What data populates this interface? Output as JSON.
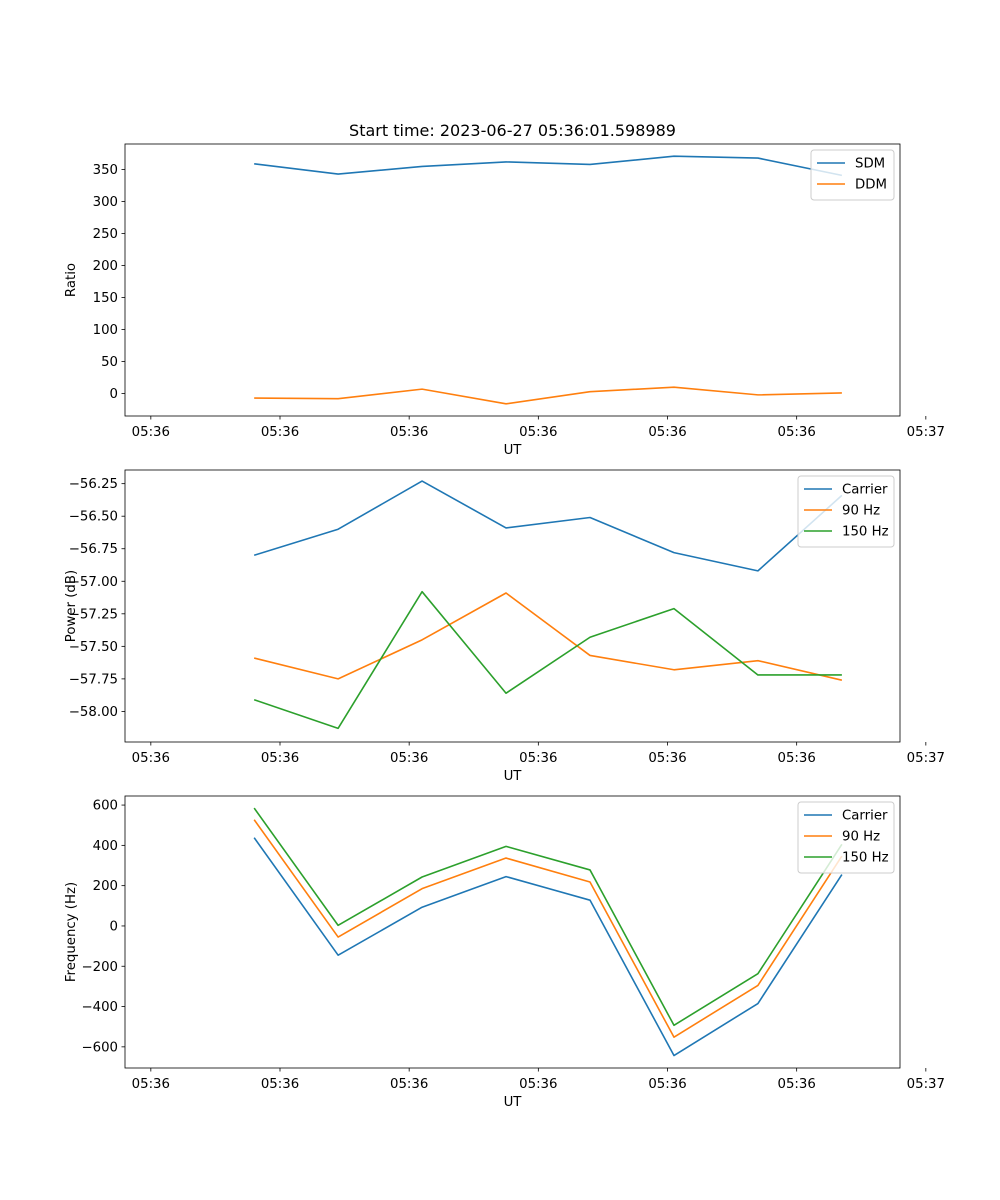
{
  "chart_data": [
    {
      "type": "line",
      "title": "Start time: 2023-06-27 05:36:01.598989",
      "xlabel": "UT",
      "ylabel": "Ratio",
      "x_tick_labels": [
        "05:36",
        "05:36",
        "05:36",
        "05:36",
        "05:36",
        "05:36",
        "05:36"
      ],
      "x_tick_label_last": "05:37",
      "x_seconds": [
        2.3,
        2.95,
        3.6,
        4.25,
        4.9,
        5.55,
        6.2,
        6.85
      ],
      "xlim": [
        1.3,
        7.3
      ],
      "ylim": [
        -35,
        390
      ],
      "y_ticks": [
        0,
        50,
        100,
        150,
        200,
        250,
        300,
        350
      ],
      "legend_position": "upper right",
      "series": [
        {
          "name": "SDM",
          "color": "#1f77b4",
          "values": [
            359,
            343,
            355,
            362,
            358,
            371,
            368,
            341
          ]
        },
        {
          "name": "DDM",
          "color": "#ff7f0e",
          "values": [
            -7,
            -8,
            7,
            -16,
            3,
            10,
            -2,
            1
          ]
        }
      ]
    },
    {
      "type": "line",
      "title": "",
      "xlabel": "UT",
      "ylabel": "Power (dB)",
      "x_tick_labels": [
        "05:36",
        "05:36",
        "05:36",
        "05:36",
        "05:36",
        "05:36",
        "05:36"
      ],
      "x_tick_label_last": "05:37",
      "x_seconds": [
        2.3,
        2.95,
        3.6,
        4.25,
        4.9,
        5.55,
        6.2,
        6.85
      ],
      "xlim": [
        1.3,
        7.3
      ],
      "ylim": [
        -58.235,
        -56.145
      ],
      "y_ticks": [
        -58.0,
        -57.75,
        -57.5,
        -57.25,
        -57.0,
        -56.75,
        -56.5,
        -56.25
      ],
      "y_tick_labels": [
        "−58.00",
        "−57.75",
        "−57.50",
        "−57.25",
        "−57.00",
        "−56.75",
        "−56.50",
        "−56.25"
      ],
      "legend_position": "upper right",
      "series": [
        {
          "name": "Carrier",
          "color": "#1f77b4",
          "values": [
            -56.8,
            -56.6,
            -56.23,
            -56.59,
            -56.51,
            -56.78,
            -56.92,
            -56.34
          ]
        },
        {
          "name": "90 Hz",
          "color": "#ff7f0e",
          "values": [
            -57.59,
            -57.75,
            -57.45,
            -57.09,
            -57.57,
            -57.68,
            -57.61,
            -57.76
          ]
        },
        {
          "name": "150 Hz",
          "color": "#2ca02c",
          "values": [
            -57.91,
            -58.13,
            -57.08,
            -57.86,
            -57.43,
            -57.21,
            -57.72,
            -57.72
          ]
        }
      ]
    },
    {
      "type": "line",
      "title": "",
      "xlabel": "UT",
      "ylabel": "Frequency (Hz)",
      "x_tick_labels": [
        "05:36",
        "05:36",
        "05:36",
        "05:36",
        "05:36",
        "05:36",
        "05:36"
      ],
      "x_tick_label_last": "05:37",
      "x_seconds": [
        2.3,
        2.95,
        3.6,
        4.25,
        4.9,
        5.55,
        6.2,
        6.85
      ],
      "xlim": [
        1.3,
        7.3
      ],
      "ylim": [
        -705,
        645
      ],
      "y_ticks": [
        -600,
        -400,
        -200,
        0,
        200,
        400,
        600
      ],
      "y_tick_labels": [
        "−600",
        "−400",
        "−200",
        "0",
        "200",
        "400",
        "600"
      ],
      "legend_position": "upper right",
      "series": [
        {
          "name": "Carrier",
          "color": "#1f77b4",
          "values": [
            438,
            -145,
            93,
            245,
            128,
            -643,
            -385,
            255
          ]
        },
        {
          "name": "90 Hz",
          "color": "#ff7f0e",
          "values": [
            527,
            -55,
            185,
            337,
            218,
            -552,
            -295,
            347
          ]
        },
        {
          "name": "150 Hz",
          "color": "#2ca02c",
          "values": [
            585,
            3,
            243,
            395,
            278,
            -493,
            -237,
            405
          ]
        }
      ]
    }
  ]
}
